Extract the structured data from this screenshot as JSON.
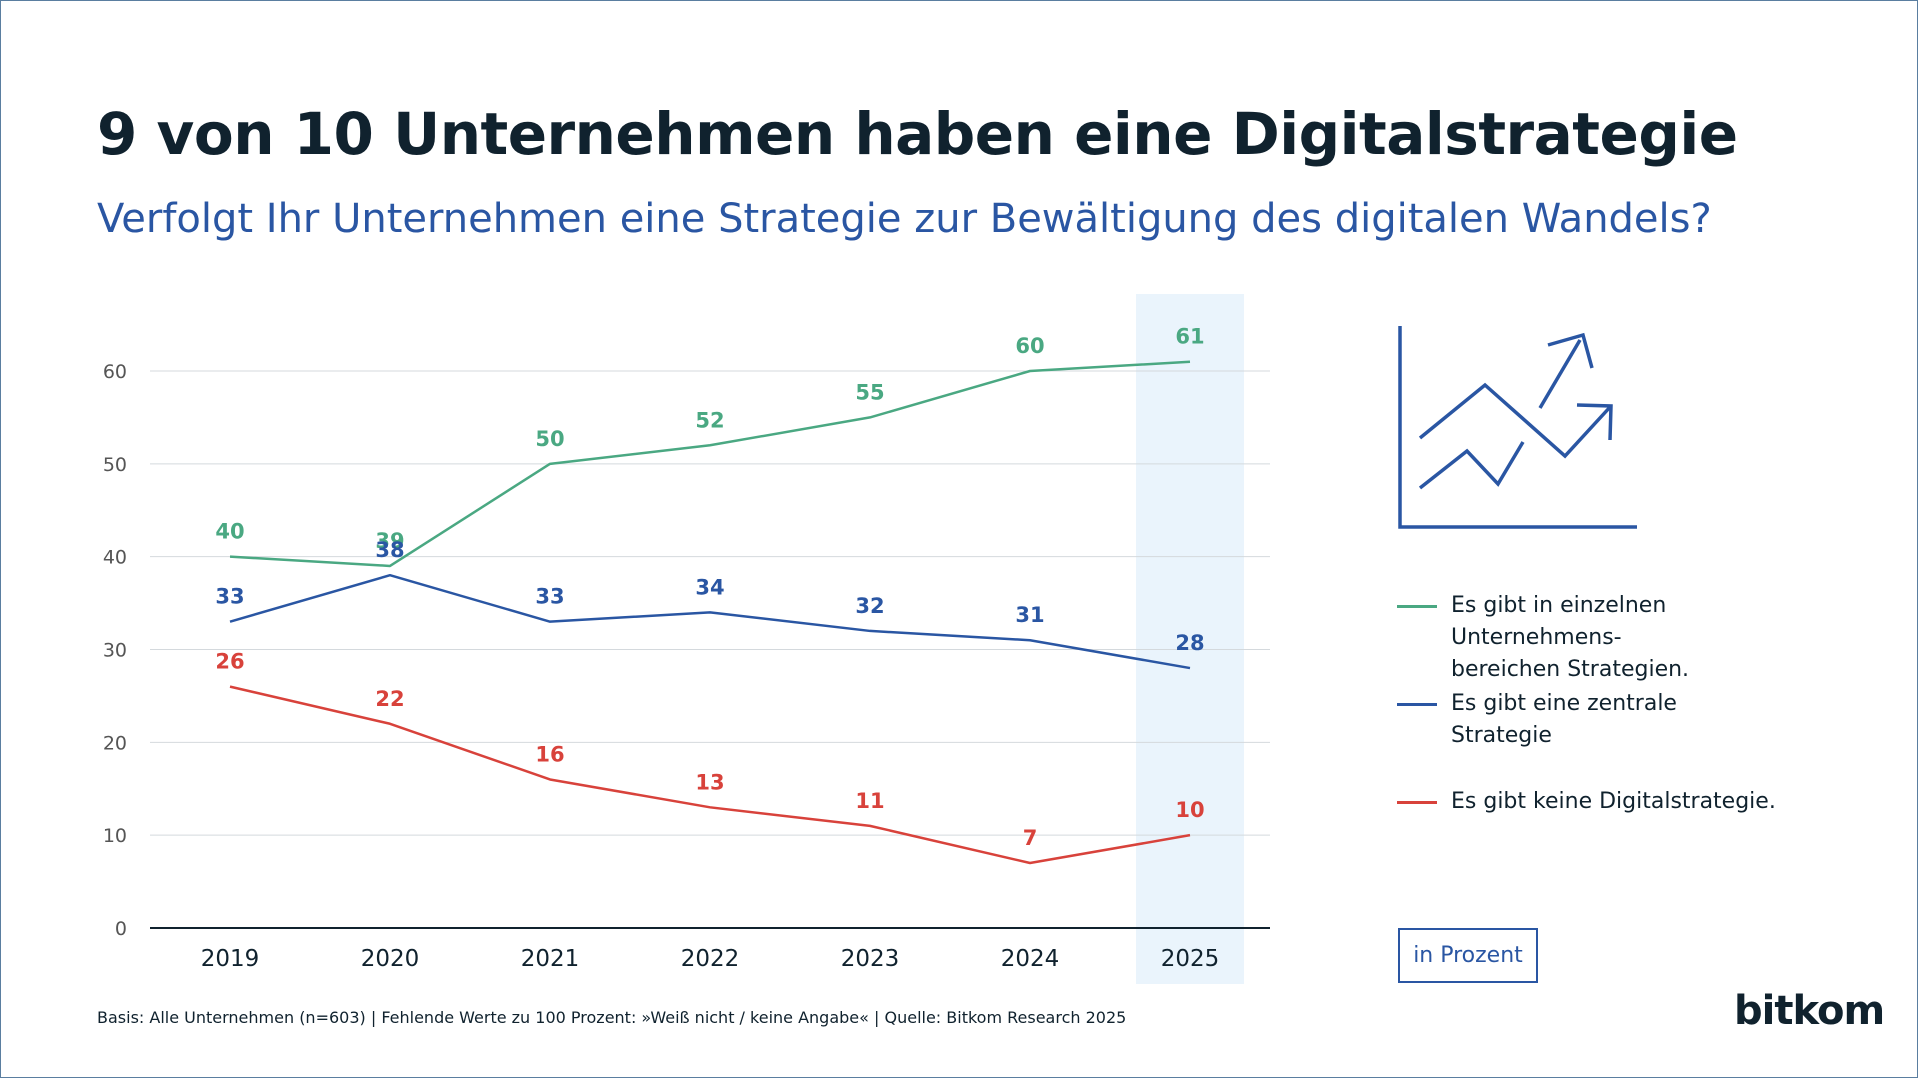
{
  "title": "9 von 10 Unternehmen haben eine Digitalstrategie",
  "subtitle": "Verfolgt Ihr Unternehmen eine Strategie zur Bewältigung des digitalen Wandels?",
  "unit_label": "in Prozent",
  "footnote": "Basis: Alle Unternehmen (n=603) | Fehlende Werte zu 100 Prozent: »Weiß nicht / keine Angabe« | Quelle: Bitkom Research 2025",
  "logo_text": "bitkom",
  "decor_icon": "chart-trend-icon",
  "colors": {
    "green": "#4aa882",
    "blue": "#2a56a3",
    "red": "#d8423b",
    "highlight": "#eaf4fc",
    "grid": "#d4d9dd",
    "axis": "#10222e"
  },
  "legend": [
    {
      "name": "Es gibt in einzelnen Unternehmens-bereichen Strategien.",
      "lines": [
        "Es gibt in einzelnen Unternehmens-",
        "bereichen Strategien."
      ],
      "color": "#4aa882"
    },
    {
      "name": "Es gibt eine zentrale Strategie",
      "lines": [
        "Es gibt eine zentrale",
        "Strategie"
      ],
      "color": "#2a56a3"
    },
    {
      "name": "Es gibt keine Digitalstrategie.",
      "lines": [
        "Es gibt keine Digitalstrategie."
      ],
      "color": "#d8423b"
    }
  ],
  "chart_data": {
    "type": "line",
    "x": [
      "2019",
      "2020",
      "2021",
      "2022",
      "2023",
      "2024",
      "2025"
    ],
    "yticks": [
      0,
      10,
      20,
      30,
      40,
      50,
      60
    ],
    "ylim": [
      0,
      60
    ],
    "highlight": "2025",
    "grid": true,
    "series": [
      {
        "name": "Es gibt in einzelnen Unternehmens-bereichen Strategien.",
        "color": "#4aa882",
        "values": [
          40,
          39,
          50,
          52,
          55,
          60,
          61
        ]
      },
      {
        "name": "Es gibt eine zentrale Strategie",
        "color": "#2a56a3",
        "values": [
          33,
          38,
          33,
          34,
          32,
          31,
          28
        ]
      },
      {
        "name": "Es gibt keine Digitalstrategie.",
        "color": "#d8423b",
        "values": [
          26,
          22,
          16,
          13,
          11,
          7,
          10
        ]
      }
    ]
  }
}
